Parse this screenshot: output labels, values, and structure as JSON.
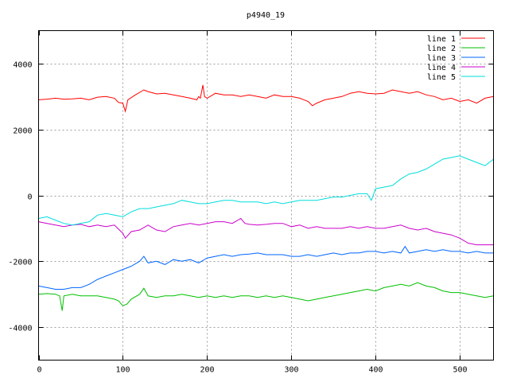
{
  "chart_data": {
    "type": "line",
    "title": "p4940_19",
    "xlabel": "",
    "ylabel": "",
    "xlim": [
      0,
      540
    ],
    "ylim": [
      -5000,
      5000
    ],
    "x_ticks": [
      0,
      100,
      200,
      300,
      400,
      500
    ],
    "y_ticks": [
      -4000,
      -2000,
      0,
      2000,
      4000
    ],
    "grid": true,
    "legend_position": "top-right",
    "series": [
      {
        "name": "line 1",
        "color": "#ff0000",
        "points": [
          [
            0,
            2900
          ],
          [
            10,
            2920
          ],
          [
            20,
            2950
          ],
          [
            30,
            2920
          ],
          [
            40,
            2930
          ],
          [
            50,
            2950
          ],
          [
            60,
            2900
          ],
          [
            70,
            2980
          ],
          [
            80,
            3000
          ],
          [
            90,
            2950
          ],
          [
            95,
            2820
          ],
          [
            100,
            2800
          ],
          [
            103,
            2550
          ],
          [
            106,
            2900
          ],
          [
            115,
            3050
          ],
          [
            125,
            3200
          ],
          [
            130,
            3150
          ],
          [
            140,
            3080
          ],
          [
            150,
            3100
          ],
          [
            160,
            3050
          ],
          [
            170,
            3000
          ],
          [
            180,
            2950
          ],
          [
            188,
            2900
          ],
          [
            190,
            3000
          ],
          [
            192,
            2950
          ],
          [
            195,
            3350
          ],
          [
            197,
            3000
          ],
          [
            200,
            2950
          ],
          [
            210,
            3100
          ],
          [
            220,
            3050
          ],
          [
            230,
            3050
          ],
          [
            240,
            3000
          ],
          [
            250,
            3050
          ],
          [
            260,
            3000
          ],
          [
            270,
            2950
          ],
          [
            280,
            3050
          ],
          [
            290,
            3000
          ],
          [
            300,
            3000
          ],
          [
            310,
            2950
          ],
          [
            320,
            2850
          ],
          [
            325,
            2720
          ],
          [
            330,
            2800
          ],
          [
            340,
            2900
          ],
          [
            350,
            2950
          ],
          [
            360,
            3000
          ],
          [
            370,
            3100
          ],
          [
            380,
            3150
          ],
          [
            390,
            3100
          ],
          [
            400,
            3080
          ],
          [
            410,
            3100
          ],
          [
            420,
            3200
          ],
          [
            430,
            3150
          ],
          [
            440,
            3100
          ],
          [
            450,
            3150
          ],
          [
            460,
            3050
          ],
          [
            470,
            3000
          ],
          [
            480,
            2900
          ],
          [
            490,
            2950
          ],
          [
            500,
            2850
          ],
          [
            510,
            2900
          ],
          [
            520,
            2800
          ],
          [
            530,
            2950
          ],
          [
            540,
            3000
          ]
        ]
      },
      {
        "name": "line 2",
        "color": "#00c000",
        "points": [
          [
            0,
            -3000
          ],
          [
            10,
            -2980
          ],
          [
            20,
            -3000
          ],
          [
            25,
            -3050
          ],
          [
            28,
            -3500
          ],
          [
            30,
            -3050
          ],
          [
            40,
            -3000
          ],
          [
            50,
            -3050
          ],
          [
            60,
            -3050
          ],
          [
            70,
            -3050
          ],
          [
            80,
            -3100
          ],
          [
            90,
            -3150
          ],
          [
            95,
            -3200
          ],
          [
            100,
            -3350
          ],
          [
            105,
            -3300
          ],
          [
            110,
            -3150
          ],
          [
            120,
            -3000
          ],
          [
            125,
            -2820
          ],
          [
            130,
            -3050
          ],
          [
            140,
            -3100
          ],
          [
            150,
            -3050
          ],
          [
            160,
            -3050
          ],
          [
            170,
            -3000
          ],
          [
            180,
            -3050
          ],
          [
            190,
            -3100
          ],
          [
            200,
            -3050
          ],
          [
            210,
            -3100
          ],
          [
            220,
            -3050
          ],
          [
            230,
            -3100
          ],
          [
            240,
            -3050
          ],
          [
            250,
            -3050
          ],
          [
            260,
            -3100
          ],
          [
            270,
            -3050
          ],
          [
            280,
            -3100
          ],
          [
            290,
            -3050
          ],
          [
            300,
            -3100
          ],
          [
            310,
            -3150
          ],
          [
            320,
            -3200
          ],
          [
            330,
            -3150
          ],
          [
            340,
            -3100
          ],
          [
            350,
            -3050
          ],
          [
            360,
            -3000
          ],
          [
            370,
            -2950
          ],
          [
            380,
            -2900
          ],
          [
            390,
            -2850
          ],
          [
            400,
            -2900
          ],
          [
            410,
            -2800
          ],
          [
            420,
            -2750
          ],
          [
            430,
            -2700
          ],
          [
            440,
            -2750
          ],
          [
            450,
            -2650
          ],
          [
            460,
            -2750
          ],
          [
            470,
            -2800
          ],
          [
            480,
            -2900
          ],
          [
            490,
            -2950
          ],
          [
            500,
            -2950
          ],
          [
            510,
            -3000
          ],
          [
            520,
            -3050
          ],
          [
            530,
            -3100
          ],
          [
            540,
            -3050
          ]
        ]
      },
      {
        "name": "line 3",
        "color": "#0066ff",
        "points": [
          [
            0,
            -2750
          ],
          [
            10,
            -2800
          ],
          [
            20,
            -2850
          ],
          [
            30,
            -2850
          ],
          [
            40,
            -2800
          ],
          [
            50,
            -2800
          ],
          [
            60,
            -2700
          ],
          [
            70,
            -2550
          ],
          [
            80,
            -2450
          ],
          [
            90,
            -2350
          ],
          [
            100,
            -2250
          ],
          [
            105,
            -2200
          ],
          [
            110,
            -2150
          ],
          [
            120,
            -2000
          ],
          [
            125,
            -1850
          ],
          [
            130,
            -2050
          ],
          [
            140,
            -2000
          ],
          [
            150,
            -2100
          ],
          [
            160,
            -1950
          ],
          [
            170,
            -2000
          ],
          [
            180,
            -1950
          ],
          [
            190,
            -2050
          ],
          [
            200,
            -1900
          ],
          [
            210,
            -1850
          ],
          [
            220,
            -1800
          ],
          [
            230,
            -1850
          ],
          [
            240,
            -1800
          ],
          [
            250,
            -1780
          ],
          [
            260,
            -1750
          ],
          [
            270,
            -1800
          ],
          [
            280,
            -1800
          ],
          [
            290,
            -1800
          ],
          [
            300,
            -1850
          ],
          [
            310,
            -1850
          ],
          [
            320,
            -1800
          ],
          [
            330,
            -1850
          ],
          [
            340,
            -1800
          ],
          [
            350,
            -1750
          ],
          [
            360,
            -1800
          ],
          [
            370,
            -1750
          ],
          [
            380,
            -1750
          ],
          [
            390,
            -1700
          ],
          [
            400,
            -1700
          ],
          [
            410,
            -1750
          ],
          [
            420,
            -1700
          ],
          [
            430,
            -1750
          ],
          [
            435,
            -1550
          ],
          [
            440,
            -1750
          ],
          [
            450,
            -1700
          ],
          [
            460,
            -1650
          ],
          [
            470,
            -1700
          ],
          [
            480,
            -1650
          ],
          [
            490,
            -1700
          ],
          [
            500,
            -1700
          ],
          [
            510,
            -1750
          ],
          [
            520,
            -1700
          ],
          [
            530,
            -1750
          ],
          [
            540,
            -1750
          ]
        ]
      },
      {
        "name": "line 4",
        "color": "#cc00cc",
        "points": [
          [
            0,
            -800
          ],
          [
            10,
            -850
          ],
          [
            20,
            -900
          ],
          [
            30,
            -950
          ],
          [
            40,
            -900
          ],
          [
            50,
            -880
          ],
          [
            60,
            -950
          ],
          [
            70,
            -900
          ],
          [
            80,
            -950
          ],
          [
            90,
            -900
          ],
          [
            100,
            -1150
          ],
          [
            103,
            -1300
          ],
          [
            110,
            -1100
          ],
          [
            120,
            -1050
          ],
          [
            130,
            -900
          ],
          [
            140,
            -1050
          ],
          [
            150,
            -1100
          ],
          [
            160,
            -950
          ],
          [
            170,
            -900
          ],
          [
            180,
            -850
          ],
          [
            190,
            -900
          ],
          [
            200,
            -850
          ],
          [
            210,
            -800
          ],
          [
            220,
            -800
          ],
          [
            230,
            -850
          ],
          [
            240,
            -700
          ],
          [
            245,
            -850
          ],
          [
            250,
            -880
          ],
          [
            260,
            -900
          ],
          [
            270,
            -880
          ],
          [
            280,
            -850
          ],
          [
            290,
            -850
          ],
          [
            300,
            -950
          ],
          [
            310,
            -900
          ],
          [
            320,
            -1000
          ],
          [
            330,
            -950
          ],
          [
            340,
            -1000
          ],
          [
            350,
            -1000
          ],
          [
            360,
            -1000
          ],
          [
            370,
            -950
          ],
          [
            380,
            -1000
          ],
          [
            390,
            -950
          ],
          [
            400,
            -1000
          ],
          [
            410,
            -1000
          ],
          [
            420,
            -950
          ],
          [
            430,
            -900
          ],
          [
            440,
            -1000
          ],
          [
            450,
            -1050
          ],
          [
            460,
            -1000
          ],
          [
            470,
            -1100
          ],
          [
            480,
            -1150
          ],
          [
            490,
            -1200
          ],
          [
            500,
            -1300
          ],
          [
            510,
            -1450
          ],
          [
            520,
            -1500
          ],
          [
            530,
            -1500
          ],
          [
            540,
            -1500
          ]
        ]
      },
      {
        "name": "line 5",
        "color": "#00dddd",
        "points": [
          [
            0,
            -700
          ],
          [
            10,
            -650
          ],
          [
            20,
            -750
          ],
          [
            30,
            -850
          ],
          [
            40,
            -900
          ],
          [
            50,
            -850
          ],
          [
            60,
            -800
          ],
          [
            70,
            -600
          ],
          [
            80,
            -550
          ],
          [
            90,
            -600
          ],
          [
            100,
            -650
          ],
          [
            110,
            -500
          ],
          [
            120,
            -400
          ],
          [
            130,
            -400
          ],
          [
            140,
            -350
          ],
          [
            150,
            -300
          ],
          [
            160,
            -250
          ],
          [
            170,
            -150
          ],
          [
            180,
            -200
          ],
          [
            190,
            -250
          ],
          [
            200,
            -250
          ],
          [
            210,
            -200
          ],
          [
            220,
            -150
          ],
          [
            230,
            -150
          ],
          [
            240,
            -200
          ],
          [
            250,
            -200
          ],
          [
            260,
            -200
          ],
          [
            270,
            -250
          ],
          [
            280,
            -200
          ],
          [
            290,
            -250
          ],
          [
            300,
            -200
          ],
          [
            310,
            -150
          ],
          [
            320,
            -150
          ],
          [
            330,
            -150
          ],
          [
            340,
            -100
          ],
          [
            350,
            -50
          ],
          [
            360,
            -50
          ],
          [
            370,
            0
          ],
          [
            380,
            50
          ],
          [
            390,
            50
          ],
          [
            395,
            -150
          ],
          [
            400,
            200
          ],
          [
            410,
            250
          ],
          [
            420,
            300
          ],
          [
            430,
            500
          ],
          [
            440,
            650
          ],
          [
            450,
            700
          ],
          [
            460,
            800
          ],
          [
            470,
            950
          ],
          [
            480,
            1100
          ],
          [
            490,
            1150
          ],
          [
            500,
            1200
          ],
          [
            510,
            1100
          ],
          [
            520,
            1000
          ],
          [
            530,
            900
          ],
          [
            540,
            1100
          ]
        ]
      }
    ]
  }
}
